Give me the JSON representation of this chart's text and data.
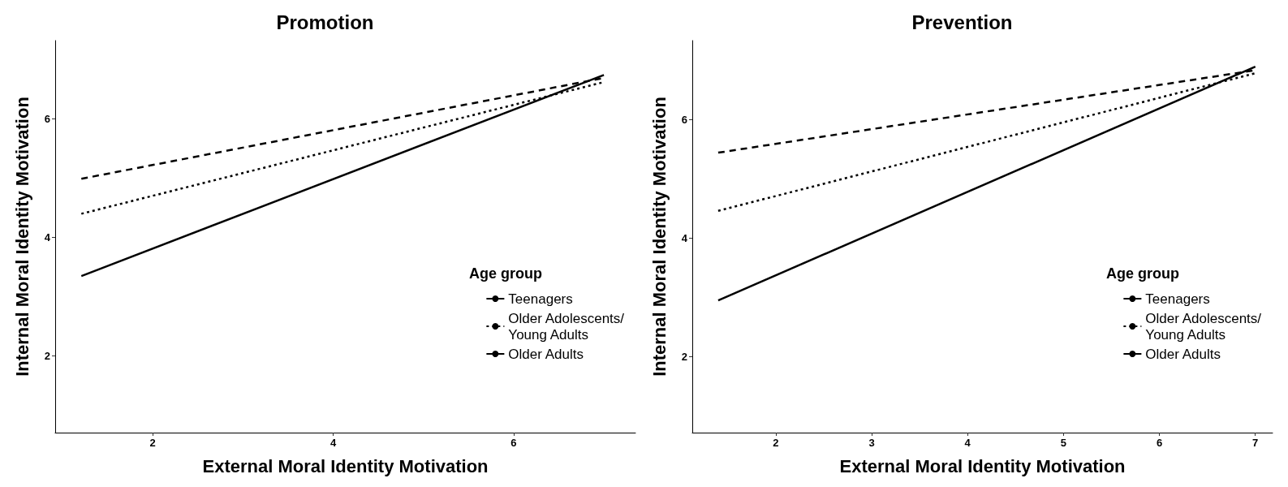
{
  "chart_data": [
    {
      "type": "line",
      "title": "Promotion",
      "xlabel": "External Moral Identity Motivation",
      "ylabel": "Internal Moral Identity Motivation",
      "legend_title": "Age group",
      "legend": "right",
      "grid": false,
      "marker": "none",
      "xlim": [
        0.92,
        7.35
      ],
      "xticks": [
        2,
        4,
        6
      ],
      "ylim": [
        0.71,
        7.32
      ],
      "yticks": [
        2,
        4,
        6
      ],
      "series": [
        {
          "name": "Teenagers",
          "color": "#000000",
          "line_style": "solid",
          "x": [
            1.21,
            7.0
          ],
          "values": [
            3.35,
            6.74
          ]
        },
        {
          "name": "Older Adolescents/\nYoung Adults",
          "color": "#000000",
          "line_style": "dotted",
          "x": [
            1.21,
            7.0
          ],
          "values": [
            4.4,
            6.62
          ]
        },
        {
          "name": "Older Adults",
          "color": "#000000",
          "line_style": "dashed",
          "x": [
            1.21,
            7.0
          ],
          "values": [
            4.99,
            6.69
          ]
        }
      ]
    },
    {
      "type": "line",
      "title": "Prevention",
      "xlabel": "External Moral Identity Motivation",
      "ylabel": "Internal Moral Identity Motivation",
      "legend_title": "Age group",
      "legend": "right",
      "grid": false,
      "marker": "none",
      "xlim": [
        1.13,
        7.18
      ],
      "xticks": [
        2,
        3,
        4,
        5,
        6,
        7
      ],
      "ylim": [
        0.72,
        7.33
      ],
      "yticks": [
        2,
        4,
        6
      ],
      "series": [
        {
          "name": "Teenagers",
          "color": "#000000",
          "line_style": "solid",
          "x": [
            1.4,
            7.0
          ],
          "values": [
            2.95,
            6.89
          ]
        },
        {
          "name": "Older Adolescents/\nYoung Adults",
          "color": "#000000",
          "line_style": "dotted",
          "x": [
            1.4,
            7.0
          ],
          "values": [
            4.46,
            6.78
          ]
        },
        {
          "name": "Older Adults",
          "color": "#000000",
          "line_style": "dashed",
          "x": [
            1.4,
            7.0
          ],
          "values": [
            5.44,
            6.83
          ]
        }
      ]
    }
  ]
}
